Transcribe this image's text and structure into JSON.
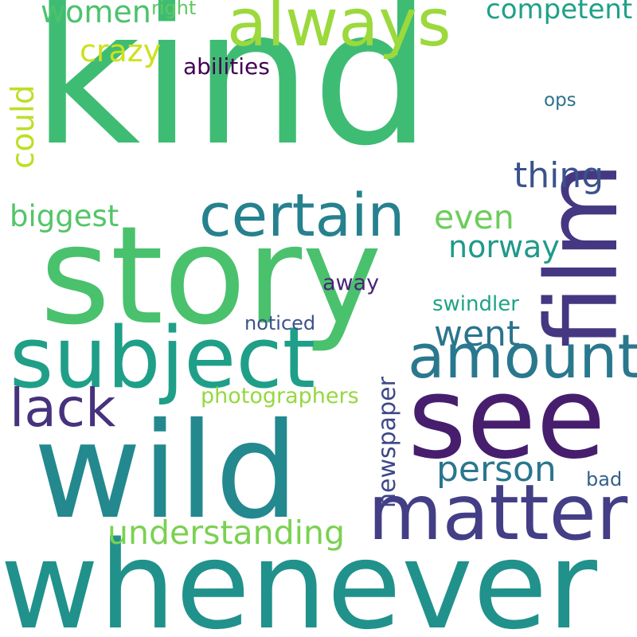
{
  "words": [
    {
      "key": "kind",
      "text": "kind",
      "color": "#3fbc73"
    },
    {
      "key": "story",
      "text": "story",
      "color": "#4ac16d"
    },
    {
      "key": "whenever",
      "text": "whenever",
      "color": "#21918c"
    },
    {
      "key": "wild",
      "text": "wild",
      "color": "#23898e"
    },
    {
      "key": "see",
      "text": "see",
      "color": "#471e6e"
    },
    {
      "key": "film",
      "text": "film",
      "color": "#453781"
    },
    {
      "key": "subject",
      "text": "subject",
      "color": "#1f9f88"
    },
    {
      "key": "always",
      "text": "always",
      "color": "#9bd93c"
    },
    {
      "key": "matter",
      "text": "matter",
      "color": "#433e85"
    },
    {
      "key": "certain",
      "text": "certain",
      "color": "#26818e"
    },
    {
      "key": "amount",
      "text": "amount",
      "color": "#29788e"
    },
    {
      "key": "lack",
      "text": "lack",
      "color": "#46327e"
    },
    {
      "key": "understanding",
      "text": "understanding",
      "color": "#7ad151"
    },
    {
      "key": "person",
      "text": "person",
      "color": "#2a768e"
    },
    {
      "key": "went",
      "text": "went",
      "color": "#2b748e"
    },
    {
      "key": "thing",
      "text": "thing",
      "color": "#3b528b"
    },
    {
      "key": "even",
      "text": "even",
      "color": "#6ccd5a"
    },
    {
      "key": "norway",
      "text": "norway",
      "color": "#1f9a8a"
    },
    {
      "key": "women",
      "text": "women",
      "color": "#4cc26c"
    },
    {
      "key": "crazy",
      "text": "crazy",
      "color": "#cde11d"
    },
    {
      "key": "could",
      "text": "could",
      "color": "#bddf26"
    },
    {
      "key": "biggest",
      "text": "biggest",
      "color": "#54c568"
    },
    {
      "key": "competent",
      "text": "competent",
      "color": "#1fa187"
    },
    {
      "key": "newspaper",
      "text": "newspaper",
      "color": "#3f4788"
    },
    {
      "key": "photographers",
      "text": "photographers",
      "color": "#95d840"
    },
    {
      "key": "abilities",
      "text": "abilities",
      "color": "#440154"
    },
    {
      "key": "right",
      "text": "right",
      "color": "#5ec962"
    },
    {
      "key": "ops",
      "text": "ops",
      "color": "#2c728e"
    },
    {
      "key": "noticed",
      "text": "noticed",
      "color": "#3b528b"
    },
    {
      "key": "away",
      "text": "away",
      "color": "#482677"
    },
    {
      "key": "swindler",
      "text": "swindler",
      "color": "#20a386"
    },
    {
      "key": "bad",
      "text": "bad",
      "color": "#355f8d"
    }
  ]
}
